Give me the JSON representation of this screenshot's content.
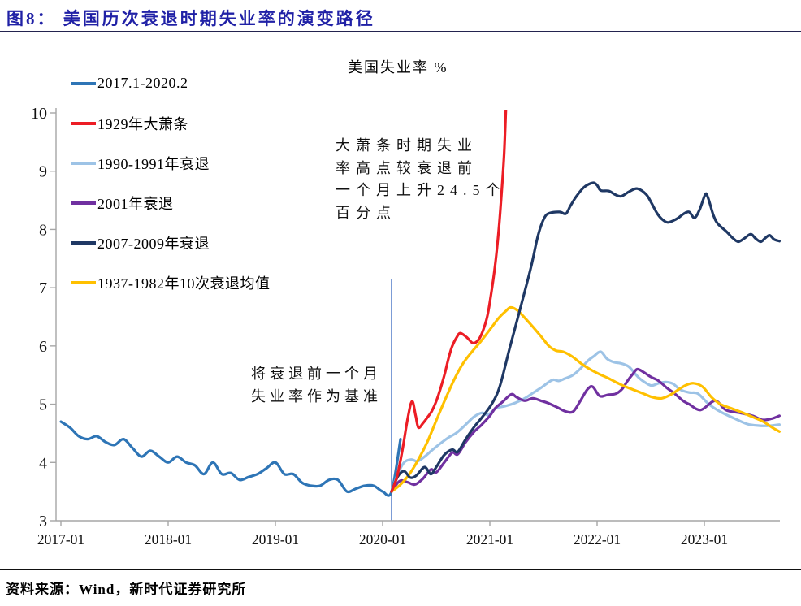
{
  "header": {
    "title": "图8：  美国历次衰退时期失业率的演变路径"
  },
  "footer": {
    "source": "资料来源：Wind，新时代证券研究所"
  },
  "chart_data": {
    "type": "line",
    "title": "美国失业率 %",
    "x_unit": "months since 2017-01",
    "x_axis": {
      "range": [
        0,
        81
      ],
      "ticks": [
        {
          "m": 0,
          "label": "2017-01"
        },
        {
          "m": 12,
          "label": "2018-01"
        },
        {
          "m": 24,
          "label": "2019-01"
        },
        {
          "m": 36,
          "label": "2020-01"
        },
        {
          "m": 48,
          "label": "2021-01"
        },
        {
          "m": 60,
          "label": "2022-01"
        },
        {
          "m": 72,
          "label": "2023-01"
        }
      ]
    },
    "y_axis": {
      "range": [
        3,
        10
      ],
      "ticks": [
        3,
        4,
        5,
        6,
        7,
        8,
        9,
        10
      ]
    },
    "grid": false,
    "legend_position": "left-top-vertical",
    "baseline_marker": {
      "m": 37,
      "from": 3.0,
      "to": 7.15,
      "color": "#4472C4"
    },
    "annotations": {
      "depression": "大萧条时期失业\n率高点较衰退前\n一个月上升24.5个\n百分点",
      "baseline": "将衰退前一个月\n失业率作为基准"
    },
    "series": [
      {
        "id": "us-2017-2020",
        "name": "2017.1-2020.2",
        "color": "#2E75B6",
        "points": [
          [
            0,
            4.7
          ],
          [
            1,
            4.6
          ],
          [
            2,
            4.45
          ],
          [
            3,
            4.4
          ],
          [
            4,
            4.45
          ],
          [
            5,
            4.35
          ],
          [
            6,
            4.3
          ],
          [
            7,
            4.4
          ],
          [
            8,
            4.25
          ],
          [
            9,
            4.1
          ],
          [
            10,
            4.2
          ],
          [
            11,
            4.1
          ],
          [
            12,
            4.0
          ],
          [
            13,
            4.1
          ],
          [
            14,
            4.0
          ],
          [
            15,
            3.95
          ],
          [
            16,
            3.8
          ],
          [
            17,
            4.0
          ],
          [
            18,
            3.8
          ],
          [
            19,
            3.82
          ],
          [
            20,
            3.7
          ],
          [
            21,
            3.75
          ],
          [
            22,
            3.8
          ],
          [
            23,
            3.9
          ],
          [
            24,
            4.0
          ],
          [
            25,
            3.8
          ],
          [
            26,
            3.8
          ],
          [
            27,
            3.65
          ],
          [
            28,
            3.6
          ],
          [
            29,
            3.6
          ],
          [
            30,
            3.7
          ],
          [
            31,
            3.7
          ],
          [
            32,
            3.5
          ],
          [
            33,
            3.55
          ],
          [
            34,
            3.6
          ],
          [
            35,
            3.6
          ],
          [
            36,
            3.5
          ],
          [
            37,
            3.5
          ],
          [
            38,
            4.4
          ]
        ]
      },
      {
        "id": "depression-1929",
        "name": "1929年大萧条",
        "color": "#EC1D25",
        "points": [
          [
            37,
            3.5
          ],
          [
            37.6,
            3.75
          ],
          [
            38.2,
            4.2
          ],
          [
            38.8,
            4.75
          ],
          [
            39.3,
            5.05
          ],
          [
            39.7,
            4.8
          ],
          [
            40,
            4.6
          ],
          [
            40.5,
            4.67
          ],
          [
            41,
            4.77
          ],
          [
            41.5,
            4.88
          ],
          [
            42,
            5.05
          ],
          [
            42.5,
            5.28
          ],
          [
            43,
            5.55
          ],
          [
            43.4,
            5.8
          ],
          [
            43.8,
            6.0
          ],
          [
            44.3,
            6.15
          ],
          [
            44.7,
            6.22
          ],
          [
            45.4,
            6.15
          ],
          [
            46.1,
            6.05
          ],
          [
            46.7,
            6.1
          ],
          [
            47.2,
            6.25
          ],
          [
            47.7,
            6.5
          ],
          [
            48.1,
            6.85
          ],
          [
            48.6,
            7.4
          ],
          [
            49,
            8.0
          ],
          [
            49.3,
            8.6
          ],
          [
            49.6,
            9.3
          ],
          [
            49.8,
            10.08
          ]
        ]
      },
      {
        "id": "recession-1990-1991",
        "name": "1990-1991年衰退",
        "color": "#9DC3E6",
        "points": [
          [
            37,
            3.5
          ],
          [
            37.7,
            3.8
          ],
          [
            38.4,
            4.0
          ],
          [
            39.2,
            4.05
          ],
          [
            39.9,
            4.02
          ],
          [
            40.7,
            4.1
          ],
          [
            41.6,
            4.22
          ],
          [
            42.5,
            4.33
          ],
          [
            43.4,
            4.43
          ],
          [
            44.2,
            4.5
          ],
          [
            45.1,
            4.62
          ],
          [
            46.2,
            4.78
          ],
          [
            47.1,
            4.85
          ],
          [
            47.8,
            4.82
          ],
          [
            48.7,
            4.93
          ],
          [
            49.8,
            4.97
          ],
          [
            50.8,
            5.02
          ],
          [
            51.9,
            5.1
          ],
          [
            52.9,
            5.2
          ],
          [
            53.9,
            5.3
          ],
          [
            54.5,
            5.37
          ],
          [
            55.1,
            5.42
          ],
          [
            55.7,
            5.4
          ],
          [
            56.4,
            5.44
          ],
          [
            57.3,
            5.5
          ],
          [
            58.2,
            5.62
          ],
          [
            59,
            5.75
          ],
          [
            59.6,
            5.82
          ],
          [
            60.4,
            5.9
          ],
          [
            61.1,
            5.78
          ],
          [
            61.9,
            5.72
          ],
          [
            62.7,
            5.7
          ],
          [
            63.5,
            5.65
          ],
          [
            64.1,
            5.55
          ],
          [
            64.7,
            5.45
          ],
          [
            65.4,
            5.37
          ],
          [
            66.1,
            5.32
          ],
          [
            66.9,
            5.36
          ],
          [
            67.7,
            5.38
          ],
          [
            68.5,
            5.35
          ],
          [
            69.3,
            5.25
          ],
          [
            70.3,
            5.2
          ],
          [
            71.3,
            5.18
          ],
          [
            72.5,
            5.0
          ],
          [
            73.8,
            4.87
          ],
          [
            75.3,
            4.76
          ],
          [
            76.8,
            4.66
          ],
          [
            78.2,
            4.63
          ],
          [
            79.3,
            4.63
          ],
          [
            80.4,
            4.65
          ]
        ]
      },
      {
        "id": "recession-2001",
        "name": "2001年衰退",
        "color": "#7030A0",
        "points": [
          [
            37,
            3.5
          ],
          [
            37.9,
            3.68
          ],
          [
            38.8,
            3.66
          ],
          [
            39.6,
            3.62
          ],
          [
            40.5,
            3.72
          ],
          [
            41.4,
            3.88
          ],
          [
            42,
            3.83
          ],
          [
            42.9,
            4.0
          ],
          [
            43.8,
            4.17
          ],
          [
            44.4,
            4.14
          ],
          [
            45.3,
            4.35
          ],
          [
            46.2,
            4.52
          ],
          [
            47.1,
            4.65
          ],
          [
            48,
            4.8
          ],
          [
            48.6,
            4.93
          ],
          [
            49.5,
            5.05
          ],
          [
            50.4,
            5.17
          ],
          [
            51,
            5.12
          ],
          [
            51.9,
            5.06
          ],
          [
            52.8,
            5.1
          ],
          [
            53.7,
            5.06
          ],
          [
            54.5,
            5.02
          ],
          [
            55.5,
            4.95
          ],
          [
            56.4,
            4.88
          ],
          [
            57.3,
            4.87
          ],
          [
            58.1,
            5.05
          ],
          [
            58.9,
            5.25
          ],
          [
            59.5,
            5.3
          ],
          [
            60.3,
            5.14
          ],
          [
            61.2,
            5.16
          ],
          [
            62.1,
            5.18
          ],
          [
            62.8,
            5.26
          ],
          [
            63.4,
            5.4
          ],
          [
            64,
            5.52
          ],
          [
            64.5,
            5.6
          ],
          [
            65.2,
            5.55
          ],
          [
            66,
            5.47
          ],
          [
            66.9,
            5.4
          ],
          [
            67.8,
            5.28
          ],
          [
            68.7,
            5.18
          ],
          [
            69.6,
            5.06
          ],
          [
            70.3,
            5.0
          ],
          [
            71.6,
            4.9
          ],
          [
            73.2,
            5.06
          ],
          [
            74.4,
            4.9
          ],
          [
            76,
            4.85
          ],
          [
            77.4,
            4.8
          ],
          [
            78.5,
            4.73
          ],
          [
            79.5,
            4.75
          ],
          [
            80.4,
            4.8
          ]
        ]
      },
      {
        "id": "recession-2007-2009",
        "name": "2007-2009年衰退",
        "color": "#1F3864",
        "points": [
          [
            37,
            3.5
          ],
          [
            37.7,
            3.76
          ],
          [
            38.4,
            3.85
          ],
          [
            39.1,
            3.74
          ],
          [
            39.8,
            3.78
          ],
          [
            40.7,
            3.92
          ],
          [
            41.4,
            3.8
          ],
          [
            42,
            3.92
          ],
          [
            42.9,
            4.13
          ],
          [
            43.8,
            4.22
          ],
          [
            44.4,
            4.18
          ],
          [
            45.3,
            4.4
          ],
          [
            46.2,
            4.6
          ],
          [
            47.1,
            4.77
          ],
          [
            48.2,
            5.0
          ],
          [
            49.1,
            5.3
          ],
          [
            50.2,
            5.95
          ],
          [
            51.5,
            6.7
          ],
          [
            52.6,
            7.35
          ],
          [
            53.4,
            7.9
          ],
          [
            54.1,
            8.2
          ],
          [
            54.7,
            8.28
          ],
          [
            55.8,
            8.3
          ],
          [
            56.5,
            8.27
          ],
          [
            57,
            8.4
          ],
          [
            57.6,
            8.55
          ],
          [
            58.5,
            8.72
          ],
          [
            59.5,
            8.8
          ],
          [
            60,
            8.76
          ],
          [
            60.4,
            8.67
          ],
          [
            61.3,
            8.66
          ],
          [
            62,
            8.6
          ],
          [
            62.7,
            8.57
          ],
          [
            63.6,
            8.65
          ],
          [
            64.5,
            8.7
          ],
          [
            65.5,
            8.6
          ],
          [
            66.1,
            8.45
          ],
          [
            66.7,
            8.28
          ],
          [
            67.3,
            8.17
          ],
          [
            67.9,
            8.12
          ],
          [
            68.5,
            8.15
          ],
          [
            69.1,
            8.2
          ],
          [
            69.7,
            8.27
          ],
          [
            70.3,
            8.3
          ],
          [
            70.9,
            8.2
          ],
          [
            71.5,
            8.35
          ],
          [
            72.1,
            8.6
          ],
          [
            72.4,
            8.55
          ],
          [
            73,
            8.25
          ],
          [
            73.5,
            8.1
          ],
          [
            74.5,
            7.96
          ],
          [
            75.2,
            7.85
          ],
          [
            75.8,
            7.79
          ],
          [
            76.5,
            7.85
          ],
          [
            77.2,
            7.92
          ],
          [
            77.7,
            7.85
          ],
          [
            78.3,
            7.79
          ],
          [
            78.8,
            7.85
          ],
          [
            79.3,
            7.9
          ],
          [
            79.8,
            7.83
          ],
          [
            80.4,
            7.8
          ]
        ]
      },
      {
        "id": "avg-10-recessions-1937-1982",
        "name": "1937-1982年10次衰退均值",
        "color": "#FFC000",
        "points": [
          [
            37,
            3.5
          ],
          [
            38,
            3.62
          ],
          [
            39,
            3.8
          ],
          [
            40,
            4.05
          ],
          [
            41,
            4.35
          ],
          [
            42,
            4.72
          ],
          [
            43,
            5.08
          ],
          [
            44,
            5.42
          ],
          [
            45,
            5.7
          ],
          [
            46,
            5.9
          ],
          [
            47,
            6.08
          ],
          [
            48,
            6.28
          ],
          [
            49,
            6.48
          ],
          [
            49.8,
            6.6
          ],
          [
            50.3,
            6.66
          ],
          [
            51,
            6.62
          ],
          [
            51.8,
            6.5
          ],
          [
            52.8,
            6.33
          ],
          [
            53.8,
            6.15
          ],
          [
            54.6,
            6.0
          ],
          [
            55.4,
            5.92
          ],
          [
            56.2,
            5.9
          ],
          [
            57.2,
            5.82
          ],
          [
            58.2,
            5.7
          ],
          [
            59.2,
            5.6
          ],
          [
            60.2,
            5.52
          ],
          [
            61.2,
            5.45
          ],
          [
            62.2,
            5.37
          ],
          [
            63.2,
            5.3
          ],
          [
            64.2,
            5.24
          ],
          [
            65.2,
            5.18
          ],
          [
            66.2,
            5.12
          ],
          [
            67.2,
            5.1
          ],
          [
            68.2,
            5.16
          ],
          [
            69.2,
            5.26
          ],
          [
            70,
            5.33
          ],
          [
            70.8,
            5.36
          ],
          [
            71.8,
            5.3
          ],
          [
            72.8,
            5.12
          ],
          [
            73.8,
            5.0
          ],
          [
            75,
            4.93
          ],
          [
            76.2,
            4.86
          ],
          [
            77.4,
            4.78
          ],
          [
            78.6,
            4.7
          ],
          [
            79.6,
            4.6
          ],
          [
            80.4,
            4.53
          ]
        ]
      }
    ]
  }
}
